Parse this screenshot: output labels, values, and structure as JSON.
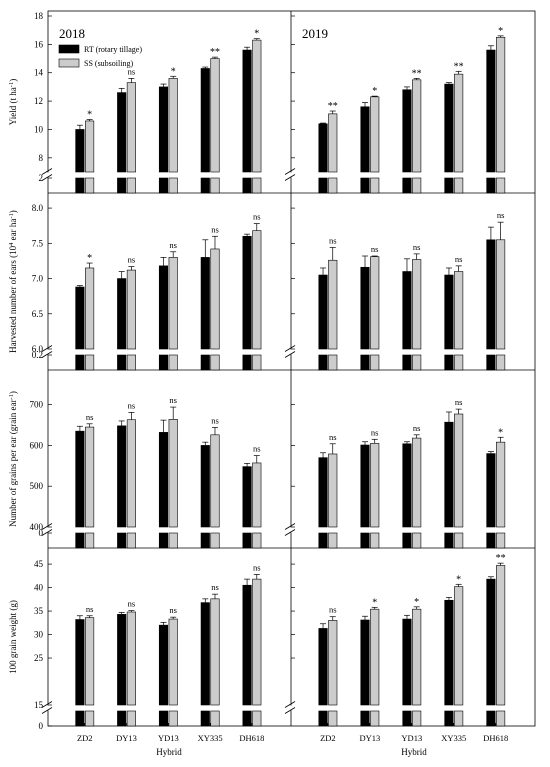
{
  "years": [
    "2018",
    "2019"
  ],
  "hybrids": [
    "ZD2",
    "DY13",
    "YD13",
    "XY335",
    "DH618"
  ],
  "x_axis_label": "Hybrid",
  "legend": {
    "rt": "RT (rotary tillage)",
    "ss": "SS (subsoiling)"
  },
  "colors": {
    "rt": "#000000",
    "ss": "#cccccc"
  },
  "rows": [
    {
      "key": "yield",
      "ylabel_main": "Yield  (t ha",
      "ylabel_sup": "-1",
      "ylabel_tail": ")",
      "broken_ticks": [
        "2"
      ],
      "ticks": [
        "8",
        "10",
        "12",
        "14",
        "16",
        "18"
      ]
    },
    {
      "key": "ears",
      "ylabel_main": "Harvested number of ears  (10",
      "ylabel_sup": "4",
      "ylabel_tail": " ear ha",
      "ylabel_sup2": "-1",
      "ylabel_tail2": ")",
      "broken_ticks": [
        "0.2"
      ],
      "ticks": [
        "6.0",
        "6.5",
        "7.0",
        "7.5",
        "8.0"
      ]
    },
    {
      "key": "grains",
      "ylabel_main": "Number of grains per ear  (grain ear",
      "ylabel_sup": "-1",
      "ylabel_tail": ")",
      "broken_ticks": [
        "0"
      ],
      "ticks": [
        "400",
        "500",
        "600",
        "700"
      ]
    },
    {
      "key": "weight",
      "ylabel_main": "100 grain weight  (g)",
      "broken_ticks": [
        "0"
      ],
      "ticks": [
        "15",
        "25",
        "30",
        "35",
        "40",
        "45"
      ]
    }
  ],
  "chart_data": [
    {
      "type": "bar",
      "row": "yield",
      "year": "2018",
      "categories": [
        "ZD2",
        "DY13",
        "YD13",
        "XY335",
        "DH618"
      ],
      "ylim": [
        7,
        18
      ],
      "broken_axis": true,
      "series": [
        {
          "name": "RT (rotary tillage)",
          "values": [
            10.0,
            12.6,
            13.0,
            14.3,
            15.6
          ],
          "errors": [
            0.3,
            0.3,
            0.2,
            0.1,
            0.2
          ]
        },
        {
          "name": "SS (subsoiling)",
          "values": [
            10.6,
            13.3,
            13.6,
            15.0,
            16.3
          ],
          "errors": [
            0.1,
            0.3,
            0.15,
            0.1,
            0.1
          ]
        }
      ],
      "significance": [
        "*",
        "ns",
        "*",
        "**",
        "*"
      ]
    },
    {
      "type": "bar",
      "row": "yield",
      "year": "2019",
      "categories": [
        "ZD2",
        "DY13",
        "YD13",
        "XY335",
        "DH618"
      ],
      "ylim": [
        7,
        18
      ],
      "broken_axis": true,
      "series": [
        {
          "name": "RT (rotary tillage)",
          "values": [
            10.4,
            11.6,
            12.8,
            13.2,
            15.6
          ],
          "errors": [
            0.05,
            0.3,
            0.2,
            0.1,
            0.3
          ]
        },
        {
          "name": "SS (subsoiling)",
          "values": [
            11.1,
            12.3,
            13.5,
            13.9,
            16.5
          ],
          "errors": [
            0.2,
            0.05,
            0.1,
            0.2,
            0.1
          ]
        }
      ],
      "significance": [
        "**",
        "*",
        "**",
        "**",
        "*"
      ]
    },
    {
      "type": "bar",
      "row": "ears",
      "year": "2018",
      "categories": [
        "ZD2",
        "DY13",
        "YD13",
        "XY335",
        "DH618"
      ],
      "ylim": [
        6.0,
        8.2
      ],
      "broken_axis": true,
      "series": [
        {
          "name": "RT (rotary tillage)",
          "values": [
            6.88,
            7.0,
            7.18,
            7.3,
            7.6
          ],
          "errors": [
            0.02,
            0.1,
            0.12,
            0.25,
            0.03
          ]
        },
        {
          "name": "SS (subsoiling)",
          "values": [
            7.15,
            7.12,
            7.3,
            7.42,
            7.68
          ],
          "errors": [
            0.07,
            0.05,
            0.08,
            0.18,
            0.1
          ]
        }
      ],
      "significance": [
        "*",
        "ns",
        "ns",
        "ns",
        "ns"
      ]
    },
    {
      "type": "bar",
      "row": "ears",
      "year": "2019",
      "categories": [
        "ZD2",
        "DY13",
        "YD13",
        "XY335",
        "DH618"
      ],
      "ylim": [
        6.0,
        8.2
      ],
      "broken_axis": true,
      "series": [
        {
          "name": "RT (rotary tillage)",
          "values": [
            7.05,
            7.16,
            7.1,
            7.05,
            7.55
          ],
          "errors": [
            0.1,
            0.16,
            0.18,
            0.1,
            0.18
          ]
        },
        {
          "name": "SS (subsoiling)",
          "values": [
            7.26,
            7.31,
            7.27,
            7.1,
            7.55
          ],
          "errors": [
            0.18,
            0.01,
            0.08,
            0.08,
            0.25
          ]
        }
      ],
      "significance": [
        "ns",
        "ns",
        "ns",
        "ns",
        "ns"
      ]
    },
    {
      "type": "bar",
      "row": "grains",
      "year": "2018",
      "categories": [
        "ZD2",
        "DY13",
        "YD13",
        "XY335",
        "DH618"
      ],
      "ylim": [
        400,
        780
      ],
      "broken_axis": true,
      "series": [
        {
          "name": "RT (rotary tillage)",
          "values": [
            635,
            648,
            632,
            600,
            548
          ],
          "errors": [
            12,
            12,
            30,
            8,
            8
          ]
        },
        {
          "name": "SS (subsoiling)",
          "values": [
            645,
            663,
            664,
            626,
            557
          ],
          "errors": [
            8,
            18,
            30,
            18,
            18
          ]
        }
      ],
      "significance": [
        "ns",
        "ns",
        "ns",
        "ns",
        "ns"
      ]
    },
    {
      "type": "bar",
      "row": "grains",
      "year": "2019",
      "categories": [
        "ZD2",
        "DY13",
        "YD13",
        "XY335",
        "DH618"
      ],
      "ylim": [
        400,
        780
      ],
      "broken_axis": true,
      "series": [
        {
          "name": "RT (rotary tillage)",
          "values": [
            570,
            601,
            604,
            657,
            580
          ],
          "errors": [
            12,
            8,
            5,
            25,
            5
          ]
        },
        {
          "name": "SS (subsoiling)",
          "values": [
            579,
            605,
            618,
            677,
            608
          ],
          "errors": [
            25,
            10,
            8,
            12,
            12
          ]
        }
      ],
      "significance": [
        "ns",
        "ns",
        "ns",
        "ns",
        "*"
      ]
    },
    {
      "type": "bar",
      "row": "weight",
      "year": "2018",
      "categories": [
        "ZD2",
        "DY13",
        "YD13",
        "XY335",
        "DH618"
      ],
      "ylim": [
        15,
        48
      ],
      "broken_axis": true,
      "series": [
        {
          "name": "RT (rotary tillage)",
          "values": [
            33.2,
            34.3,
            32.0,
            36.8,
            40.5
          ],
          "errors": [
            0.8,
            0.4,
            0.6,
            0.8,
            1.3
          ]
        },
        {
          "name": "SS (subsoiling)",
          "values": [
            33.6,
            34.8,
            33.3,
            37.6,
            41.8
          ],
          "errors": [
            0.4,
            0.3,
            0.4,
            1.0,
            1.0
          ]
        }
      ],
      "significance": [
        "ns",
        "ns",
        "ns",
        "ns",
        "ns"
      ]
    },
    {
      "type": "bar",
      "row": "weight",
      "year": "2019",
      "categories": [
        "ZD2",
        "DY13",
        "YD13",
        "XY335",
        "DH618"
      ],
      "ylim": [
        15,
        48
      ],
      "broken_axis": true,
      "series": [
        {
          "name": "RT (rotary tillage)",
          "values": [
            31.3,
            33.1,
            33.3,
            37.3,
            41.8
          ],
          "errors": [
            1.0,
            0.8,
            0.8,
            0.6,
            0.5
          ]
        },
        {
          "name": "SS (subsoiling)",
          "values": [
            33.0,
            35.4,
            35.4,
            40.2,
            44.7
          ],
          "errors": [
            0.8,
            0.4,
            0.5,
            0.5,
            0.5
          ]
        }
      ],
      "significance": [
        "ns",
        "*",
        "*",
        "*",
        "**"
      ]
    }
  ]
}
